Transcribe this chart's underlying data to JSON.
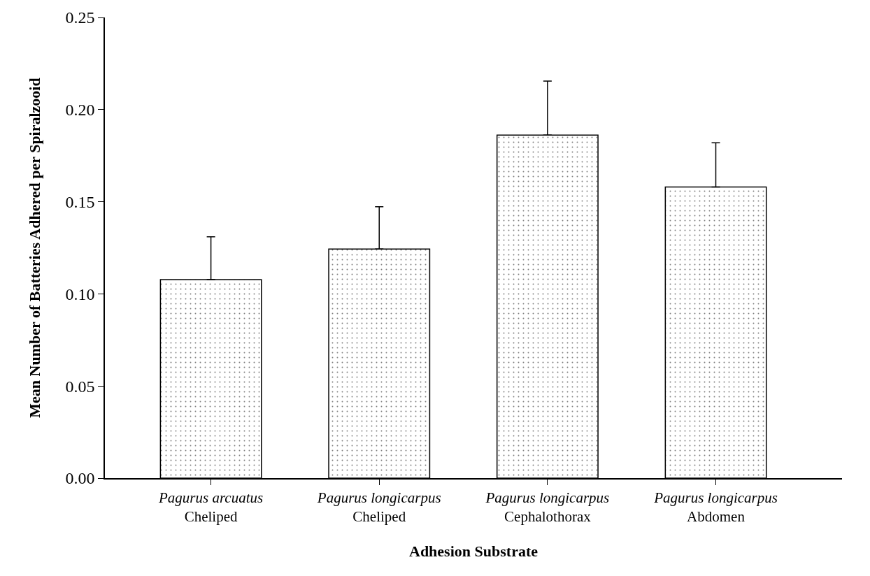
{
  "chart_data": {
    "type": "bar",
    "xlabel": "Adhesion Substrate",
    "ylabel": "Mean Number of Batteries Adhered per Spiralzooid",
    "categories": [
      "Pagurus arcuatus\nCheliped",
      "Pagurus longicarpus\nCheliped",
      "Pagurus longicarpus\nCephalothorax",
      "Pagurus longicarpus\nAbdomen"
    ],
    "values": [
      0.1077,
      0.1243,
      0.1862,
      0.158
    ],
    "errors": [
      [
        0.1077,
        0.131
      ],
      [
        0.1243,
        0.1473
      ],
      [
        0.1862,
        0.2155
      ],
      [
        0.158,
        0.182
      ]
    ],
    "color": "#000000",
    "ylim": [
      0,
      0.25
    ],
    "yticks": [
      {
        "value": 0,
        "label": "0.00"
      },
      {
        "value": 0.05,
        "label": "0.05"
      },
      {
        "value": 0.1,
        "label": "0.10"
      },
      {
        "value": 0.15,
        "label": "0.15"
      },
      {
        "value": 0.2,
        "label": "0.20"
      },
      {
        "value": 0.25,
        "label": "0.25"
      }
    ]
  }
}
